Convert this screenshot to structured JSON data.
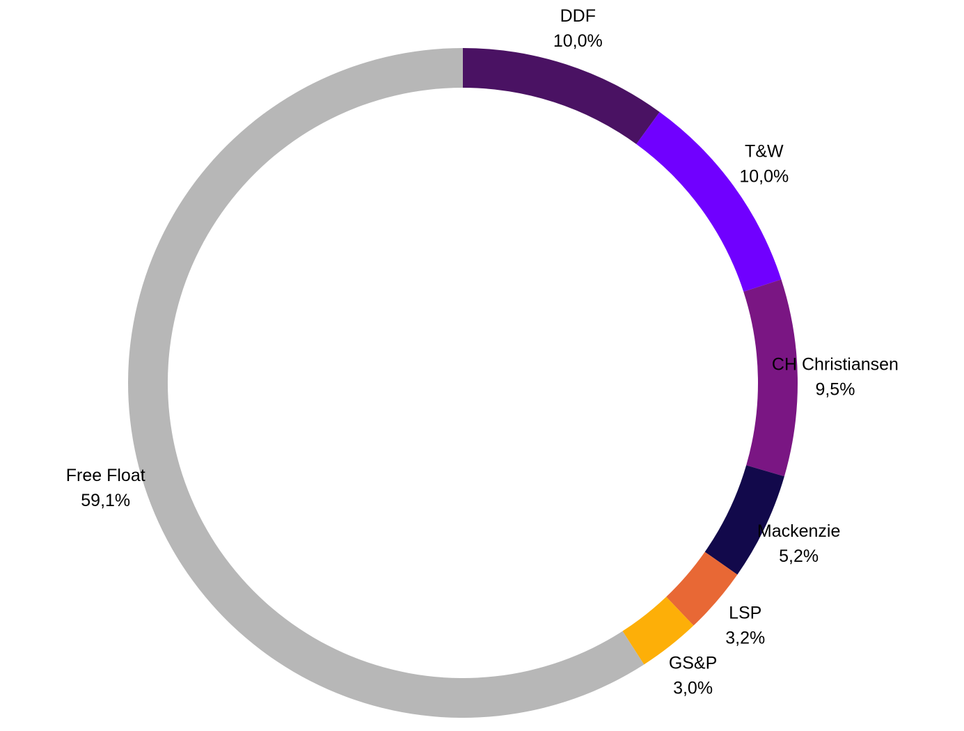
{
  "chart_data": {
    "type": "pie",
    "style": "donut",
    "title": "",
    "start_angle_deg": 0,
    "direction": "clockwise",
    "slices": [
      {
        "name": "DDF",
        "value": 10.0,
        "value_label": "10,0%",
        "color": "#4a1263"
      },
      {
        "name": "T&W",
        "value": 10.0,
        "value_label": "10,0%",
        "color": "#7000ff"
      },
      {
        "name": "CH Christiansen",
        "value": 9.5,
        "value_label": "9,5%",
        "color": "#7a1683"
      },
      {
        "name": "Mackenzie",
        "value": 5.2,
        "value_label": "5,2%",
        "color": "#12094b"
      },
      {
        "name": "LSP",
        "value": 3.2,
        "value_label": "3,2%",
        "color": "#e86835"
      },
      {
        "name": "GS&P",
        "value": 3.0,
        "value_label": "3,0%",
        "color": "#fdaf08"
      },
      {
        "name": "Free Float",
        "value": 59.1,
        "value_label": "59,1%",
        "color": "#b7b7b7"
      }
    ]
  }
}
